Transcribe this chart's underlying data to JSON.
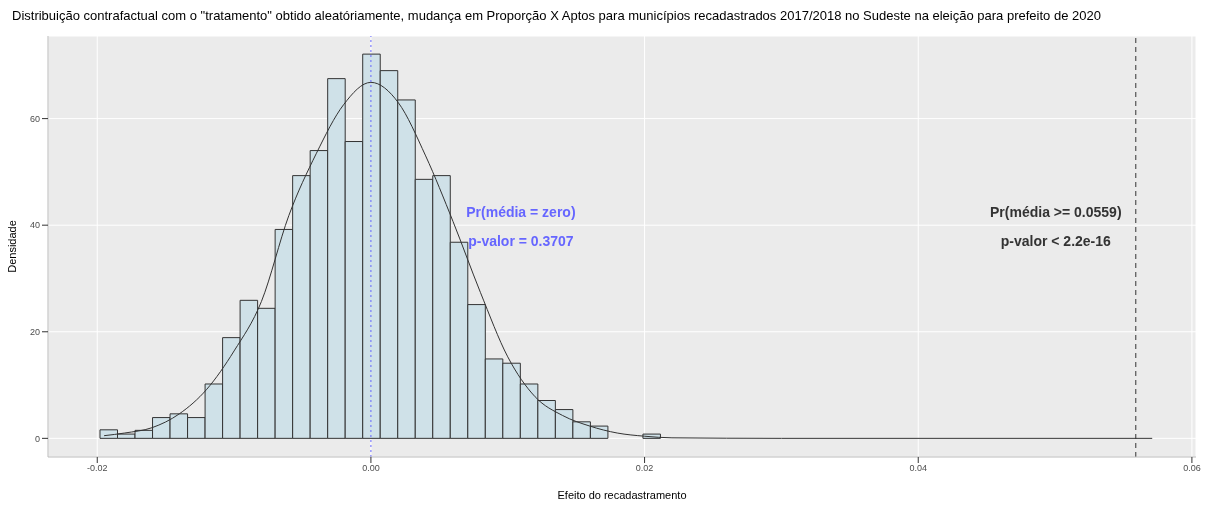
{
  "chart_data": {
    "type": "histogram",
    "title": "Distribuição contrafactual com o \"tratamento\" obtido aleatóriamente, mudança em Proporção X Aptos para municípios recadastrados 2017/2018 no Sudeste na eleição para prefeito de 2020",
    "xlabel": "Efeito do recadastramento",
    "ylabel": "Densidade",
    "xlim": [
      -0.0236,
      0.0603
    ],
    "xticks": [
      -0.02,
      {
        "value": 0,
        "label": "0.00"
      },
      0.02,
      0.04,
      0.06
    ],
    "ylim": [
      -3.5,
      75.5
    ],
    "yticks": [
      0,
      20,
      40,
      60
    ],
    "grid": true,
    "series": [
      {
        "color": "#cfe1e8",
        "bins": [
          -0.0198,
          -0.01852,
          -0.01724,
          -0.01596,
          -0.01468,
          -0.0134,
          -0.01212,
          -0.01084,
          -0.00956,
          -0.00828,
          -0.007,
          -0.00572,
          -0.00444,
          -0.00316,
          -0.00188,
          -0.0006,
          0.00068,
          0.00196,
          0.00324,
          0.00452,
          0.0058,
          0.00708,
          0.00836,
          0.00964,
          0.01092,
          0.0122,
          0.01348,
          0.01476,
          0.01604,
          0.01732,
          0.0186,
          0.01988,
          0.02116
        ],
        "values": [
          1.6,
          0.8,
          1.5,
          3.9,
          4.6,
          3.9,
          10.2,
          18.9,
          25.9,
          24.4,
          39.2,
          49.3,
          54.0,
          67.5,
          55.7,
          72.1,
          69.0,
          63.5,
          48.6,
          49.3,
          36.8,
          25.1,
          14.9,
          14.1,
          10.2,
          7.1,
          5.4,
          3.1,
          2.3,
          0,
          0,
          0.8
        ]
      },
      {
        "type": "line",
        "color": "#333333",
        "x": [
          -0.0195,
          -0.018,
          -0.016,
          -0.014,
          -0.012,
          -0.01,
          -0.008,
          -0.006,
          -0.004,
          -0.002,
          0,
          0.002,
          0.004,
          0.006,
          0.008,
          0.01,
          0.012,
          0.014,
          0.016,
          0.018,
          0.02,
          0.022,
          0.03,
          0.0571
        ],
        "values": [
          0.5,
          1.0,
          2.0,
          4.6,
          9.2,
          16.4,
          25.7,
          41.8,
          53.4,
          62.6,
          66.8,
          63,
          53,
          40.7,
          27.4,
          15.3,
          7.8,
          4.3,
          2.3,
          1.0,
          0.4,
          0.1,
          0,
          0
        ]
      }
    ],
    "ref_lines": [
      {
        "axis": "x",
        "value": 0,
        "color": "#6666ff",
        "line_style": "dotted"
      },
      {
        "axis": "x",
        "value": 0.0559,
        "color": "#333333",
        "line_style": "dashed"
      }
    ],
    "annotations": [
      "Pr(média = zero)",
      "p-valor = 0.3707",
      "Pr(média >= 0.0559)",
      "p-valor < 2.2e-16"
    ]
  }
}
